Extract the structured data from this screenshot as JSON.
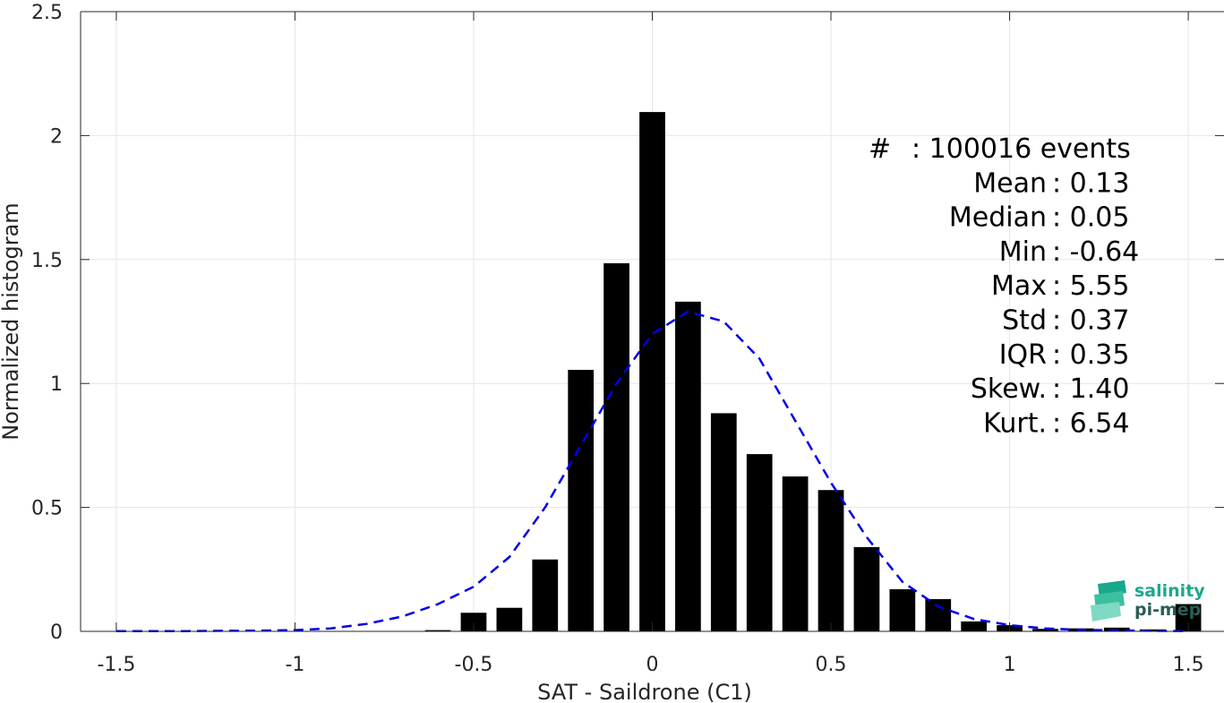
{
  "chart_data": {
    "type": "bar",
    "title": "",
    "xlabel": "SAT - Saildrone (C1)",
    "ylabel": "Normalized histogram",
    "xlim": [
      -1.5,
      1.5
    ],
    "ylim": [
      0,
      2.5
    ],
    "xticks": [
      -1.5,
      -1,
      -0.5,
      0,
      0.5,
      1,
      1.5
    ],
    "xtick_labels": [
      "-1.5",
      "-1",
      "-0.5",
      "0",
      "0.5",
      "1",
      "1.5"
    ],
    "yticks": [
      0,
      0.5,
      1,
      1.5,
      2,
      2.5
    ],
    "ytick_labels": [
      "0",
      "0.5",
      "1",
      "1.5",
      "2",
      "2.5"
    ],
    "grid": true,
    "bar_color": "#000000",
    "bars": {
      "x": [
        -0.6,
        -0.5,
        -0.4,
        -0.3,
        -0.2,
        -0.1,
        0.0,
        0.1,
        0.2,
        0.3,
        0.4,
        0.5,
        0.6,
        0.7,
        0.8,
        0.9,
        1.0,
        1.1,
        1.2,
        1.3,
        1.4,
        1.5
      ],
      "values": [
        0.005,
        0.075,
        0.095,
        0.29,
        1.055,
        1.485,
        2.095,
        1.33,
        0.88,
        0.715,
        0.625,
        0.57,
        0.34,
        0.17,
        0.13,
        0.04,
        0.025,
        0.01,
        0.012,
        0.015,
        0.008,
        0.11
      ]
    },
    "fit_curve": {
      "name": "",
      "color": "#0000e6",
      "style": "dashed",
      "x": [
        -1.5,
        -1.4,
        -1.3,
        -1.2,
        -1.1,
        -1.0,
        -0.9,
        -0.8,
        -0.7,
        -0.6,
        -0.5,
        -0.4,
        -0.3,
        -0.2,
        -0.1,
        0.0,
        0.1,
        0.2,
        0.3,
        0.4,
        0.5,
        0.6,
        0.7,
        0.8,
        0.9,
        1.0,
        1.1,
        1.2,
        1.3,
        1.4,
        1.5
      ],
      "y": [
        0.001,
        0.001,
        0.001,
        0.002,
        0.003,
        0.005,
        0.012,
        0.03,
        0.06,
        0.11,
        0.18,
        0.3,
        0.5,
        0.75,
        1.0,
        1.2,
        1.29,
        1.25,
        1.1,
        0.85,
        0.6,
        0.38,
        0.2,
        0.1,
        0.05,
        0.025,
        0.012,
        0.006,
        0.004,
        0.002,
        0.001
      ]
    },
    "stats": [
      {
        "label": "#  ",
        "value": ": 100016 events"
      },
      {
        "label": "Mean",
        "value": ": 0.13"
      },
      {
        "label": "Median",
        "value": ": 0.05"
      },
      {
        "label": "Min",
        "value": ": -0.64"
      },
      {
        "label": "Max",
        "value": ": 5.55"
      },
      {
        "label": "Std",
        "value": ": 0.37"
      },
      {
        "label": "IQR",
        "value": ": 0.35"
      },
      {
        "label": "Skew.",
        "value": ": 1.40"
      },
      {
        "label": "Kurt.",
        "value": ": 6.54"
      }
    ]
  },
  "logo": {
    "line1": "salinity",
    "line2": "pi-mep",
    "color1": "#1aa88c",
    "color2": "#2a5d55"
  }
}
